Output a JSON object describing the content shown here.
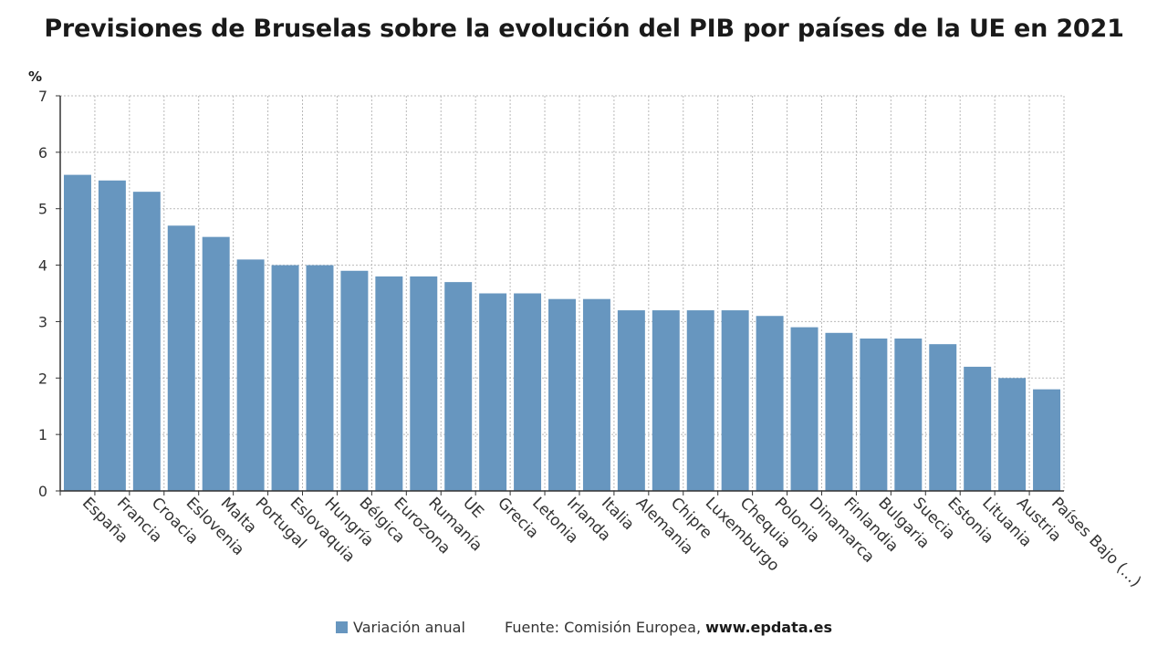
{
  "title": "Previsiones de Bruselas sobre la evolución del PIB por países de la UE en 2021",
  "chart_data": {
    "type": "bar",
    "title": "Previsiones de Bruselas sobre la evolución del PIB por países de la UE en 2021",
    "unit_label": "%",
    "xlabel": "",
    "ylabel": "",
    "ylim": [
      0,
      7
    ],
    "yticks": [
      0,
      1,
      2,
      3,
      4,
      5,
      6,
      7
    ],
    "grid": true,
    "bar_color": "#6796bf",
    "legend_position": "bottom",
    "categories": [
      "España",
      "Francia",
      "Croacia",
      "Eslovenia",
      "Malta",
      "Portugal",
      "Eslovaquia",
      "Hungría",
      "Bélgica",
      "Eurozona",
      "Rumanía",
      "UE",
      "Grecia",
      "Letonia",
      "Irlanda",
      "Italia",
      "Alemania",
      "Chipre",
      "Luxemburgo",
      "Chequia",
      "Polonia",
      "Dinamarca",
      "Finlandia",
      "Bulgaria",
      "Suecia",
      "Estonia",
      "Lituania",
      "Austria",
      "Países Bajo (...)"
    ],
    "series": [
      {
        "name": "Variación anual",
        "values": [
          5.6,
          5.5,
          5.3,
          4.7,
          4.5,
          4.1,
          4.0,
          4.0,
          3.9,
          3.8,
          3.8,
          3.7,
          3.5,
          3.5,
          3.4,
          3.4,
          3.2,
          3.2,
          3.2,
          3.2,
          3.1,
          2.9,
          2.8,
          2.7,
          2.7,
          2.6,
          2.2,
          2.0,
          1.8
        ]
      }
    ]
  },
  "footer": {
    "legend_label": "Variación anual",
    "source_label": "Fuente: Comisión Europea,",
    "source_site": "www.epdata.es"
  }
}
